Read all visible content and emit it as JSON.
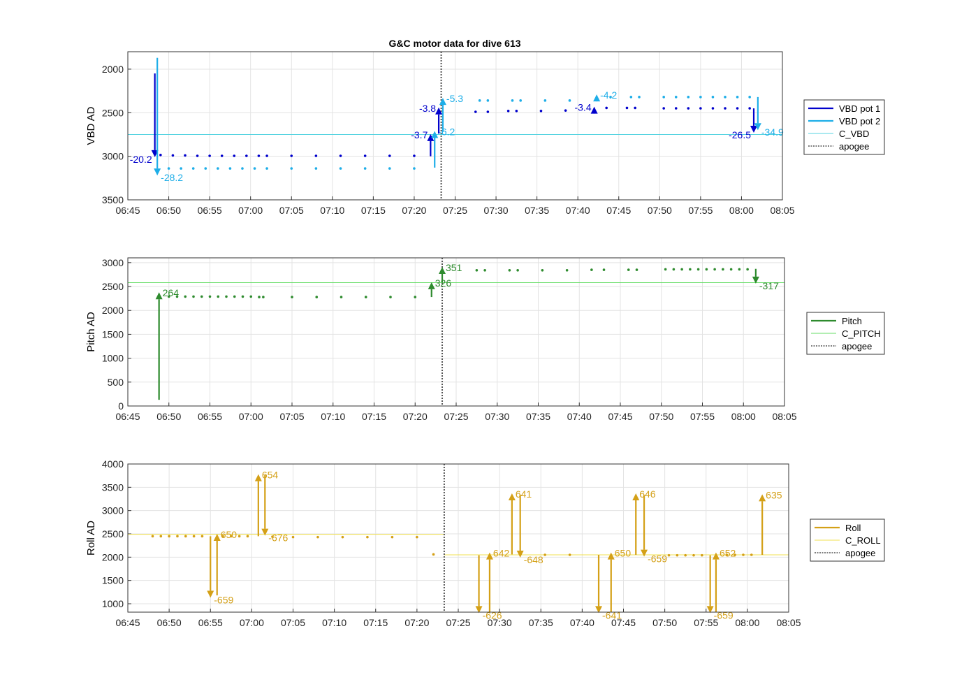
{
  "figure": {
    "title": "G&C motor data for dive 613"
  },
  "chart_data": [
    {
      "type": "scatter",
      "id": "vbd",
      "ylabel": "VBD AD",
      "y_reversed": true,
      "ylim": [
        1800,
        3500
      ],
      "yticks": [
        2000,
        2500,
        3000,
        3500
      ],
      "xlim": [
        "06:45",
        "08:05"
      ],
      "xticks": [
        "06:45",
        "06:50",
        "06:55",
        "07:00",
        "07:05",
        "07:10",
        "07:15",
        "07:20",
        "07:25",
        "07:30",
        "07:35",
        "07:40",
        "07:45",
        "07:50",
        "07:55",
        "08:00",
        "08:05"
      ],
      "grid": true,
      "legend": {
        "placement": "outside-right",
        "entries": [
          {
            "label": "VBD pot 1",
            "color": "#0000cc",
            "style": "line"
          },
          {
            "label": "VBD pot 2",
            "color": "#1eaee8",
            "style": "line"
          },
          {
            "label": "C_VBD",
            "color": "#55d3e0",
            "style": "thin"
          },
          {
            "label": "apogee",
            "color": "#555555",
            "style": "dotted"
          }
        ]
      },
      "reference_lines": [
        {
          "name": "C_VBD",
          "y": 2750,
          "color": "#55d3e0"
        }
      ],
      "vertical_lines": [
        {
          "name": "apogee",
          "x": "07:23.3",
          "color": "#555555"
        }
      ],
      "series": [
        {
          "name": "VBD pot 1",
          "color": "#0000cc",
          "x": [
            "06:49.0",
            "06:50.5",
            "06:52.0",
            "06:53.5",
            "06:55.0",
            "06:56.5",
            "06:58.0",
            "06:59.5",
            "07:01.0",
            "07:02.0",
            "07:05.0",
            "07:08.0",
            "07:11.0",
            "07:14.0",
            "07:17.0",
            "07:20.0",
            "07:27.5",
            "07:29.0",
            "07:31.5",
            "07:32.5",
            "07:35.5",
            "07:38.5",
            "07:43.5",
            "07:46.0",
            "07:47.0",
            "07:50.5",
            "07:52.0",
            "07:53.5",
            "07:55.0",
            "07:56.5",
            "07:58.0",
            "07:59.5",
            "08:01.0"
          ],
          "y": [
            2985,
            2990,
            2990,
            2995,
            2995,
            2995,
            2995,
            2995,
            2995,
            2995,
            2995,
            2995,
            2995,
            2995,
            2995,
            2995,
            2490,
            2490,
            2480,
            2480,
            2480,
            2475,
            2445,
            2445,
            2445,
            2450,
            2450,
            2450,
            2450,
            2450,
            2450,
            2450,
            2450
          ]
        },
        {
          "name": "VBD pot 2",
          "color": "#1eaee8",
          "x": [
            "06:50.0",
            "06:51.5",
            "06:53.0",
            "06:54.5",
            "06:56.0",
            "06:57.5",
            "06:59.0",
            "07:00.5",
            "07:02.0",
            "07:05.0",
            "07:08.0",
            "07:11.0",
            "07:14.0",
            "07:17.0",
            "07:20.0",
            "07:28.0",
            "07:29.0",
            "07:32.0",
            "07:33.0",
            "07:36.0",
            "07:39.0",
            "07:44.0",
            "07:46.5",
            "07:47.5",
            "07:50.5",
            "07:52.0",
            "07:53.5",
            "07:55.0",
            "07:56.5",
            "07:58.0",
            "07:59.5",
            "08:01.0"
          ],
          "y": [
            3140,
            3140,
            3140,
            3140,
            3140,
            3140,
            3140,
            3140,
            3140,
            3140,
            3140,
            3140,
            3140,
            3140,
            3140,
            2360,
            2360,
            2360,
            2360,
            2360,
            2360,
            2320,
            2320,
            2320,
            2320,
            2320,
            2320,
            2320,
            2320,
            2320,
            2320,
            2320
          ]
        }
      ],
      "moves": [
        {
          "x": "06:48.3",
          "from": 2050,
          "to": 3010,
          "label": "-20.2",
          "color": "#0000cc",
          "label_side": "left"
        },
        {
          "x": "06:48.6",
          "from": 1870,
          "to": 3220,
          "label": "-28.2",
          "color": "#1eaee8",
          "label_side": "right"
        },
        {
          "x": "07:22.0",
          "from": 3000,
          "to": 2745,
          "label": "-3.7",
          "color": "#0000cc",
          "label_side": "left"
        },
        {
          "x": "07:22.5",
          "from": 3130,
          "to": 2710,
          "label": "-6.2",
          "color": "#1eaee8",
          "label_side": "right"
        },
        {
          "x": "07:23.0",
          "from": 2740,
          "to": 2440,
          "label": "-3.8",
          "color": "#0000cc",
          "label_side": "left"
        },
        {
          "x": "07:23.5",
          "from": 2720,
          "to": 2330,
          "label": "-5.3",
          "color": "#1eaee8",
          "label_side": "right"
        },
        {
          "x": "07:42.0",
          "from": 2470,
          "to": 2430,
          "label": "-3.4",
          "color": "#0000cc",
          "label_side": "left"
        },
        {
          "x": "07:42.3",
          "from": 2330,
          "to": 2290,
          "label": "-4.2",
          "color": "#1eaee8",
          "label_side": "right"
        },
        {
          "x": "08:01.5",
          "from": 2450,
          "to": 2730,
          "label": "-26.5",
          "color": "#0000cc",
          "label_side": "left"
        },
        {
          "x": "08:02.0",
          "from": 2320,
          "to": 2700,
          "label": "-34.9",
          "color": "#1eaee8",
          "label_side": "right"
        }
      ]
    },
    {
      "type": "scatter",
      "id": "pitch",
      "ylabel": "Pitch AD",
      "ylim": [
        0,
        3100
      ],
      "yticks": [
        0,
        500,
        1000,
        1500,
        2000,
        2500,
        3000
      ],
      "xlim": [
        "06:45",
        "08:05"
      ],
      "xticks": [
        "06:45",
        "06:50",
        "06:55",
        "07:00",
        "07:05",
        "07:10",
        "07:15",
        "07:20",
        "07:25",
        "07:30",
        "07:35",
        "07:40",
        "07:45",
        "07:50",
        "07:55",
        "08:00",
        "08:05"
      ],
      "grid": true,
      "legend": {
        "placement": "outside-right",
        "entries": [
          {
            "label": "Pitch",
            "color": "#2e8b2e",
            "style": "line"
          },
          {
            "label": "C_PITCH",
            "color": "#66dd66",
            "style": "thin"
          },
          {
            "label": "apogee",
            "color": "#555555",
            "style": "dotted"
          }
        ]
      },
      "reference_lines": [
        {
          "name": "C_PITCH",
          "y": 2580,
          "color": "#66dd66"
        }
      ],
      "vertical_lines": [
        {
          "name": "apogee",
          "x": "07:23.3",
          "color": "#555555"
        }
      ],
      "series": [
        {
          "name": "Pitch",
          "color": "#2e8b2e",
          "x": [
            "06:50.0",
            "06:51.0",
            "06:52.0",
            "06:53.0",
            "06:54.0",
            "06:55.0",
            "06:56.0",
            "06:57.0",
            "06:58.0",
            "06:59.0",
            "07:00.0",
            "07:01.0",
            "07:01.5",
            "07:05.0",
            "07:08.0",
            "07:11.0",
            "07:14.0",
            "07:17.0",
            "07:20.0",
            "07:27.5",
            "07:28.5",
            "07:31.5",
            "07:32.5",
            "07:35.5",
            "07:38.5",
            "07:41.5",
            "07:43.0",
            "07:46.0",
            "07:47.0",
            "07:50.5",
            "07:51.5",
            "07:52.5",
            "07:53.5",
            "07:54.5",
            "07:55.5",
            "07:56.5",
            "07:57.5",
            "07:58.5",
            "07:59.5",
            "08:00.5"
          ],
          "y": [
            2290,
            2290,
            2290,
            2290,
            2290,
            2290,
            2290,
            2290,
            2290,
            2290,
            2290,
            2280,
            2280,
            2280,
            2280,
            2280,
            2280,
            2280,
            2280,
            2840,
            2840,
            2840,
            2840,
            2840,
            2840,
            2850,
            2850,
            2850,
            2850,
            2860,
            2860,
            2860,
            2860,
            2860,
            2860,
            2860,
            2860,
            2860,
            2860,
            2860
          ]
        }
      ],
      "moves": [
        {
          "x": "06:48.8",
          "from": 130,
          "to": 2380,
          "label": "264",
          "color": "#2e8b2e",
          "label_side": "right"
        },
        {
          "x": "07:22.0",
          "from": 2280,
          "to": 2590,
          "label": "326",
          "color": "#2e8b2e",
          "label_side": "right"
        },
        {
          "x": "07:23.3",
          "from": 2580,
          "to": 2910,
          "label": "351",
          "color": "#2e8b2e",
          "label_side": "right"
        },
        {
          "x": "08:01.5",
          "from": 2870,
          "to": 2560,
          "label": "-317",
          "color": "#2e8b2e",
          "label_side": "right"
        }
      ]
    },
    {
      "type": "scatter",
      "id": "roll",
      "ylabel": "Roll AD",
      "ylim": [
        820,
        4000
      ],
      "yticks": [
        1000,
        1500,
        2000,
        2500,
        3000,
        3500,
        4000
      ],
      "xlim": [
        "06:45",
        "08:05"
      ],
      "xticks": [
        "06:45",
        "06:50",
        "06:55",
        "07:00",
        "07:05",
        "07:10",
        "07:15",
        "07:20",
        "07:25",
        "07:30",
        "07:35",
        "07:40",
        "07:45",
        "07:50",
        "07:55",
        "08:00",
        "08:05"
      ],
      "grid": true,
      "legend": {
        "placement": "outside-right",
        "entries": [
          {
            "label": "Roll",
            "color": "#d4a017",
            "style": "line"
          },
          {
            "label": "C_ROLL",
            "color": "#f0e050",
            "style": "thin"
          },
          {
            "label": "apogee",
            "color": "#555555",
            "style": "dotted"
          }
        ]
      },
      "reference_lines": [
        {
          "name": "C_ROLL",
          "y": 2490,
          "color": "#f0e050",
          "x_end": "07:23.3"
        },
        {
          "name": "C_ROLL",
          "y": 2050,
          "color": "#f0e050",
          "x_start": "07:23.3"
        }
      ],
      "vertical_lines": [
        {
          "name": "apogee",
          "x": "07:23.3",
          "color": "#555555"
        }
      ],
      "series": [
        {
          "name": "Roll",
          "color": "#d4a017",
          "x": [
            "06:48.0",
            "06:49.0",
            "06:50.0",
            "06:51.0",
            "06:52.0",
            "06:53.0",
            "06:54.0",
            "06:56.5",
            "06:57.5",
            "06:58.5",
            "06:59.5",
            "07:02.5",
            "07:05.0",
            "07:08.0",
            "07:11.0",
            "07:14.0",
            "07:17.0",
            "07:20.0",
            "07:22.0",
            "07:35.5",
            "07:38.5",
            "07:50.5",
            "07:51.5",
            "07:52.5",
            "07:53.5",
            "07:54.5",
            "07:57.5",
            "07:58.5",
            "07:59.5",
            "08:00.5"
          ],
          "y": [
            2450,
            2450,
            2450,
            2450,
            2450,
            2450,
            2450,
            2450,
            2450,
            2450,
            2450,
            2440,
            2430,
            2430,
            2430,
            2430,
            2430,
            2430,
            2060,
            2050,
            2050,
            2040,
            2040,
            2040,
            2040,
            2040,
            2050,
            2050,
            2050,
            2050
          ]
        }
      ],
      "moves": [
        {
          "x": "06:55.0",
          "from": 2450,
          "to": 1130,
          "label": "-659",
          "color": "#d4a017",
          "label_side": "right"
        },
        {
          "x": "06:55.8",
          "from": 1180,
          "to": 2500,
          "label": "650",
          "color": "#d4a017",
          "label_side": "right"
        },
        {
          "x": "07:00.8",
          "from": 2450,
          "to": 3780,
          "label": "654",
          "color": "#d4a017",
          "label_side": "right"
        },
        {
          "x": "07:01.6",
          "from": 3760,
          "to": 2460,
          "label": "-676",
          "color": "#d4a017",
          "label_side": "right"
        },
        {
          "x": "07:27.5",
          "from": 2040,
          "to": 800,
          "label": "-626",
          "color": "#d4a017",
          "label_side": "right"
        },
        {
          "x": "07:28.8",
          "from": 820,
          "to": 2100,
          "label": "642",
          "color": "#d4a017",
          "label_side": "right"
        },
        {
          "x": "07:31.5",
          "from": 2060,
          "to": 3370,
          "label": "641",
          "color": "#d4a017",
          "label_side": "right"
        },
        {
          "x": "07:32.5",
          "from": 3340,
          "to": 1990,
          "label": "-648",
          "color": "#d4a017",
          "label_side": "right"
        },
        {
          "x": "07:42.0",
          "from": 2050,
          "to": 800,
          "label": "-641",
          "color": "#d4a017",
          "label_side": "right"
        },
        {
          "x": "07:43.5",
          "from": 820,
          "to": 2100,
          "label": "650",
          "color": "#d4a017",
          "label_side": "right"
        },
        {
          "x": "07:46.5",
          "from": 2050,
          "to": 3370,
          "label": "646",
          "color": "#d4a017",
          "label_side": "right"
        },
        {
          "x": "07:47.5",
          "from": 3330,
          "to": 2010,
          "label": "-659",
          "color": "#d4a017",
          "label_side": "right"
        },
        {
          "x": "07:55.5",
          "from": 2040,
          "to": 800,
          "label": "-659",
          "color": "#d4a017",
          "label_side": "right"
        },
        {
          "x": "07:56.2",
          "from": 820,
          "to": 2100,
          "label": "652",
          "color": "#d4a017",
          "label_side": "right"
        },
        {
          "x": "08:01.8",
          "from": 2050,
          "to": 3350,
          "label": "635",
          "color": "#d4a017",
          "label_side": "right"
        }
      ]
    }
  ]
}
